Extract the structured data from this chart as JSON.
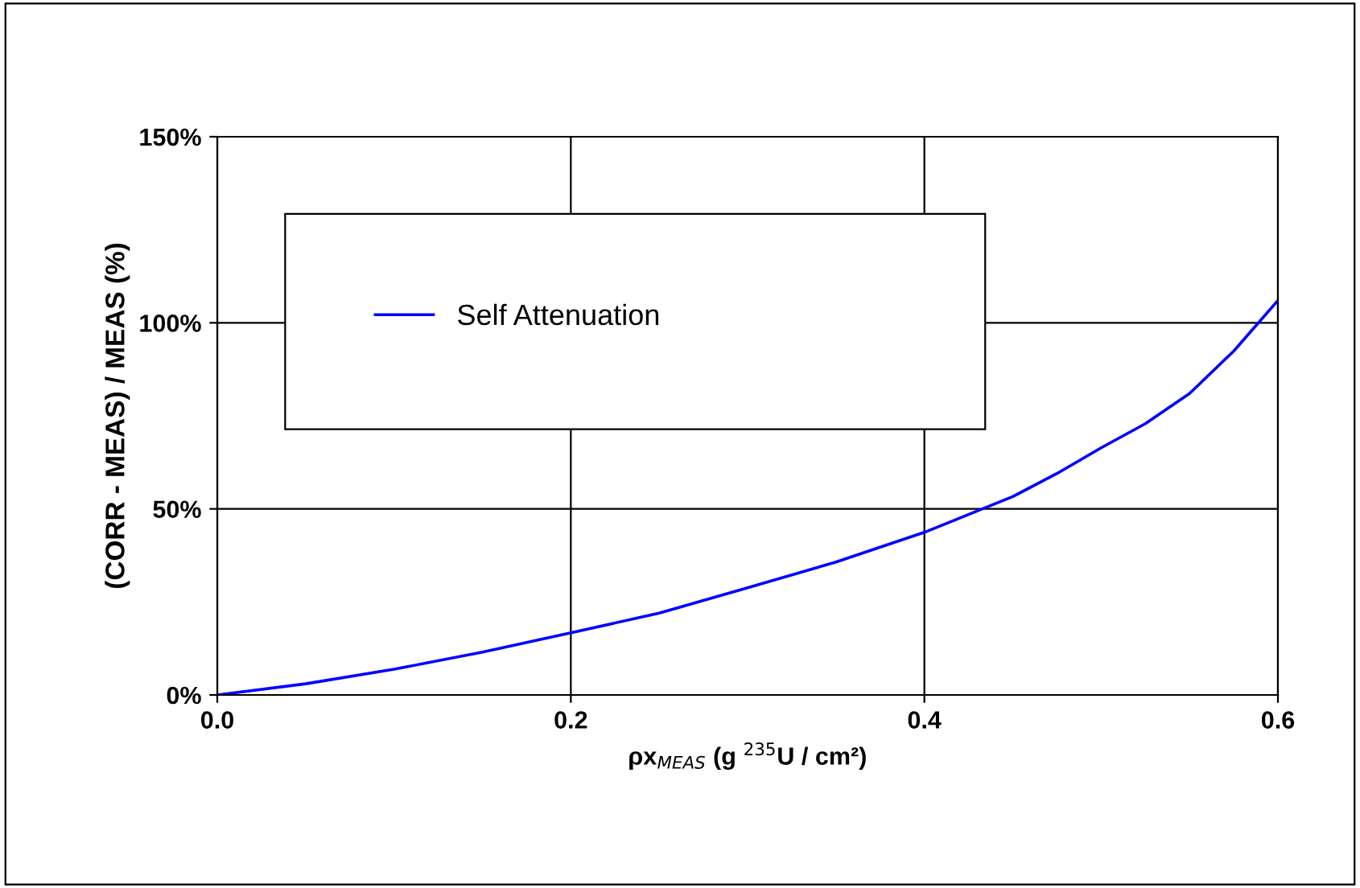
{
  "chart_data": {
    "type": "line",
    "xlabel": "ρx$_{MEAS}$ (g $^{235}$U / cm²)",
    "ylabel": "(CORR - MEAS) / MEAS (%)",
    "series": [
      {
        "name": "Self Attenuation",
        "color": "#0000ff",
        "x": [
          0,
          0.05,
          0.1,
          0.15,
          0.2,
          0.25,
          0.3,
          0.35,
          0.4,
          0.45,
          0.475,
          0.5,
          0.525,
          0.55,
          0.575,
          0.6
        ],
        "values": [
          0,
          3.0,
          6.9,
          11.5,
          16.7,
          22,
          28.8,
          35.7,
          43.7,
          53.3,
          59.5,
          66.4,
          72.9,
          81,
          92.4,
          106
        ]
      }
    ],
    "xlim": [
      0,
      0.6
    ],
    "xticks": [
      {
        "value": 0,
        "label": "0.0"
      },
      0.2,
      0.4,
      0.6
    ],
    "ylim": [
      0,
      150
    ],
    "yticks": [
      {
        "value": 0,
        "label": "0%"
      },
      {
        "value": 50,
        "label": "50%"
      },
      {
        "value": 100,
        "label": "100%"
      },
      {
        "value": 150,
        "label": "150%"
      }
    ],
    "grid": true,
    "legend": "top left",
    "marker": "none",
    "line_style": "solid"
  }
}
